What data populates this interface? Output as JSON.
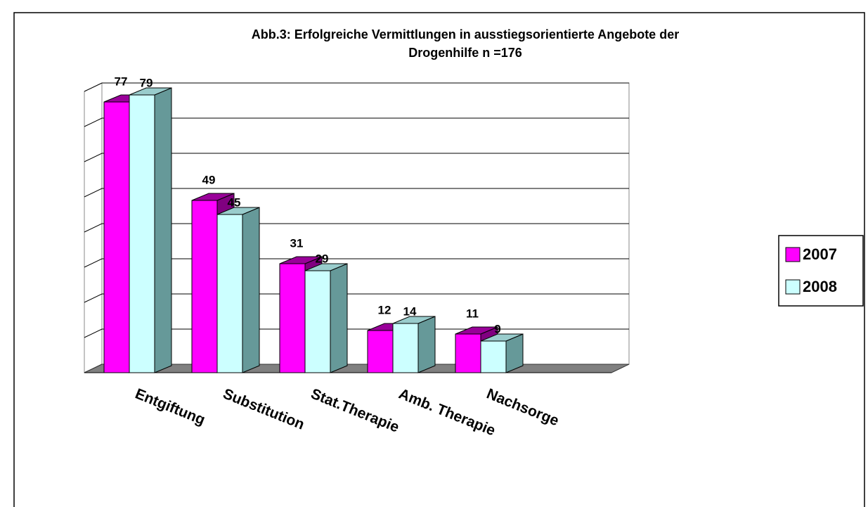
{
  "chart_data": {
    "type": "bar3d",
    "title": [
      "Abb.3: Erfolgreiche Vermittlungen in ausstiegsorientierte Angebote der",
      "Drogenhilfe n =176"
    ],
    "categories": [
      "Entgiftung",
      "Substitution",
      "Stat.Therapie",
      "Amb. Therapie",
      "Nachsorge"
    ],
    "series": [
      {
        "name": "2007",
        "color": "#ff00ff",
        "values": [
          77,
          49,
          31,
          12,
          11
        ]
      },
      {
        "name": "2008",
        "color": "#ccffff",
        "values": [
          79,
          45,
          29,
          14,
          9
        ]
      }
    ],
    "ylim": [
      0,
      80
    ],
    "yticks": [
      0,
      10,
      20,
      30,
      40,
      50,
      60,
      70,
      80
    ],
    "grid": true,
    "legend": "right"
  }
}
